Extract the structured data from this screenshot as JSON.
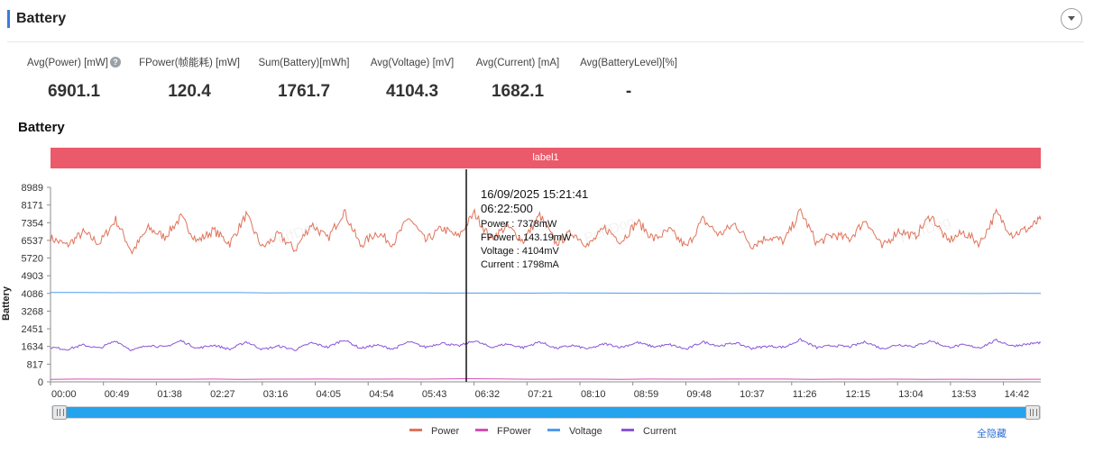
{
  "section": {
    "title": "Battery"
  },
  "stats": [
    {
      "label": "Avg(Power) [mW]",
      "value": "6901.1",
      "help": true
    },
    {
      "label": "FPower(帧能耗) [mW]",
      "value": "120.4"
    },
    {
      "label": "Sum(Battery)[mWh]",
      "value": "1761.7"
    },
    {
      "label": "Avg(Voltage) [mV]",
      "value": "4104.3"
    },
    {
      "label": "Avg(Current) [mA]",
      "value": "1682.1"
    },
    {
      "label": "Avg(BatteryLevel)[%]",
      "value": "-"
    }
  ],
  "chart": {
    "title": "Battery",
    "band_label": "label1"
  },
  "tooltip": {
    "datetime": "16/09/2025 15:21:41",
    "elapsed": "06:22:500",
    "rows": [
      "Power    : 7378mW",
      "FPower : 143.19mW",
      "Voltage : 4104mV",
      "Current : 1798mA"
    ]
  },
  "watermark": "PerfDog",
  "legend_actions": {
    "hide_all": "全隐藏"
  },
  "colors": {
    "accent": "#3a7be0",
    "band": "#eb5a6a",
    "slider": "#25a4ee",
    "power": "#e0735a",
    "fpower": "#d64fb4",
    "voltage": "#4f9cf0",
    "current": "#8a55d8"
  },
  "chart_data": {
    "type": "line",
    "title": "",
    "xlabel": "",
    "ylabel": "Battery",
    "x_ticks": [
      "00:00",
      "00:49",
      "01:38",
      "02:27",
      "03:16",
      "04:05",
      "04:54",
      "05:43",
      "06:32",
      "07:21",
      "08:10",
      "08:59",
      "09:48",
      "10:37",
      "11:26",
      "12:15",
      "13:04",
      "13:53",
      "14:42"
    ],
    "y_ticks": [
      0,
      817,
      1634,
      2451,
      3268,
      4086,
      4903,
      5720,
      6537,
      7354,
      8171,
      8989
    ],
    "ylim": [
      0,
      8989
    ],
    "x_range_minutes": [
      0,
      911
    ],
    "cursor_x_minutes": 382.5,
    "legend_position": "bottom",
    "series": [
      {
        "name": "Power",
        "color": "#e0735a",
        "x": [
          0,
          15,
          30,
          45,
          60,
          75,
          90,
          105,
          120,
          135,
          150,
          165,
          180,
          195,
          210,
          225,
          240,
          255,
          270,
          285,
          300,
          315,
          330,
          345,
          360,
          375,
          390,
          405,
          420,
          435,
          450,
          465,
          480,
          495,
          510,
          525,
          540,
          555,
          570,
          585,
          600,
          615,
          630,
          645,
          660,
          675,
          690,
          705,
          720,
          735,
          750,
          765,
          780,
          795,
          810,
          825,
          840,
          855,
          870,
          885,
          900,
          911
        ],
        "values": [
          6650,
          6300,
          6900,
          6400,
          7500,
          6000,
          7100,
          6700,
          7600,
          6500,
          7000,
          6400,
          7700,
          6200,
          6800,
          6100,
          7300,
          6600,
          7900,
          6300,
          6900,
          6400,
          7600,
          6500,
          7100,
          6700,
          7800,
          6600,
          7200,
          6500,
          7700,
          6400,
          6900,
          6300,
          7100,
          6500,
          7400,
          6600,
          7000,
          6200,
          7500,
          6800,
          7300,
          6300,
          6700,
          6500,
          7900,
          6400,
          6800,
          6600,
          7500,
          6200,
          7000,
          6700,
          7700,
          6500,
          6900,
          6400,
          7800,
          6800,
          7100,
          7500
        ]
      },
      {
        "name": "FPower",
        "color": "#d64fb4",
        "x": [
          0,
          100,
          200,
          300,
          382.5,
          500,
          600,
          700,
          800,
          911
        ],
        "values": [
          120,
          118,
          125,
          121,
          143,
          119,
          122,
          120,
          124,
          120
        ]
      },
      {
        "name": "Voltage",
        "color": "#4f9cf0",
        "x": [
          0,
          100,
          200,
          300,
          382.5,
          500,
          600,
          700,
          800,
          911
        ],
        "values": [
          4130,
          4125,
          4118,
          4112,
          4104,
          4100,
          4096,
          4092,
          4090,
          4088
        ]
      },
      {
        "name": "Current",
        "color": "#8a55d8",
        "x": [
          0,
          15,
          30,
          45,
          60,
          75,
          90,
          105,
          120,
          135,
          150,
          165,
          180,
          195,
          210,
          225,
          240,
          255,
          270,
          285,
          300,
          315,
          330,
          345,
          360,
          375,
          390,
          405,
          420,
          435,
          450,
          465,
          480,
          495,
          510,
          525,
          540,
          555,
          570,
          585,
          600,
          615,
          630,
          645,
          660,
          675,
          690,
          705,
          720,
          735,
          750,
          765,
          780,
          795,
          810,
          825,
          840,
          855,
          870,
          885,
          900,
          911
        ],
        "values": [
          1600,
          1500,
          1700,
          1550,
          1900,
          1450,
          1700,
          1600,
          1900,
          1550,
          1700,
          1500,
          1850,
          1500,
          1650,
          1480,
          1800,
          1600,
          1950,
          1550,
          1700,
          1520,
          1850,
          1600,
          1800,
          1650,
          1900,
          1600,
          1750,
          1580,
          1850,
          1550,
          1680,
          1520,
          1760,
          1600,
          1820,
          1620,
          1720,
          1500,
          1850,
          1660,
          1800,
          1550,
          1650,
          1600,
          1950,
          1580,
          1680,
          1620,
          1850,
          1530,
          1720,
          1640,
          1900,
          1600,
          1700,
          1580,
          1920,
          1660,
          1750,
          1820
        ]
      }
    ]
  }
}
